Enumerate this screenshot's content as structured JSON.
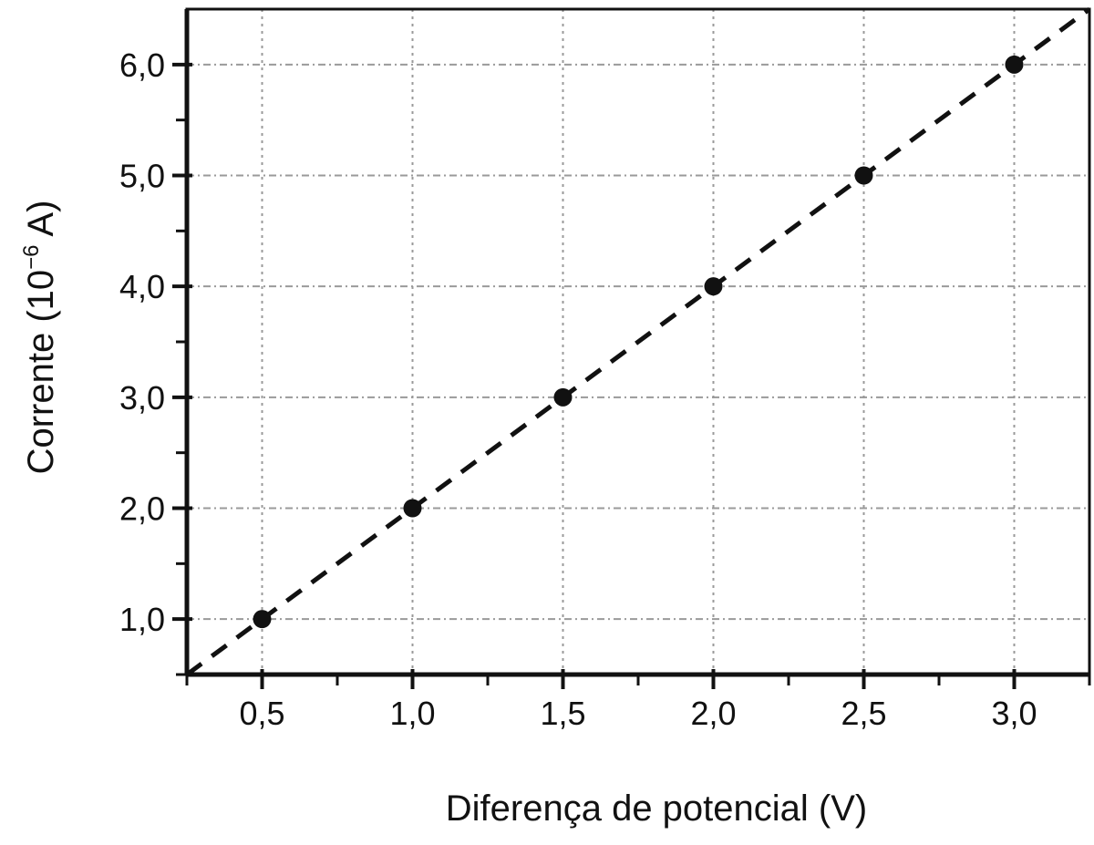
{
  "chart_data": {
    "type": "scatter",
    "title": "",
    "xlabel": "Diferença de potencial (V)",
    "ylabel_main": "Corrente (10",
    "ylabel_exp": "−6",
    "ylabel_unit": " A)",
    "xlim": [
      0.25,
      3.25
    ],
    "ylim": [
      0.5,
      6.5
    ],
    "x_ticks": [
      0.5,
      1.0,
      1.5,
      2.0,
      2.5,
      3.0
    ],
    "x_tick_labels": [
      "0,5",
      "1,0",
      "1,5",
      "2,0",
      "2,5",
      "3,0"
    ],
    "x_minor_ticks": [
      0.25,
      0.75,
      1.25,
      1.75,
      2.25,
      2.75,
      3.25
    ],
    "y_ticks": [
      1,
      2,
      3,
      4,
      5,
      6
    ],
    "y_tick_labels": [
      "1,0",
      "2,0",
      "3,0",
      "4,0",
      "5,0",
      "6,0"
    ],
    "y_minor_ticks": [
      0.5,
      1.5,
      2.5,
      3.5,
      4.5,
      5.5
    ],
    "grid": true,
    "points": {
      "x": [
        0.5,
        1.0,
        1.5,
        2.0,
        2.5,
        3.0
      ],
      "y": [
        1,
        2,
        3,
        4,
        5,
        6
      ]
    },
    "fit_line": {
      "style": "dashed",
      "x": [
        0.25,
        3.25
      ],
      "y": [
        0.5,
        6.5
      ]
    },
    "colors": {
      "points": "#111111",
      "grid": "#9a9a9a",
      "axes": "#111111"
    }
  }
}
